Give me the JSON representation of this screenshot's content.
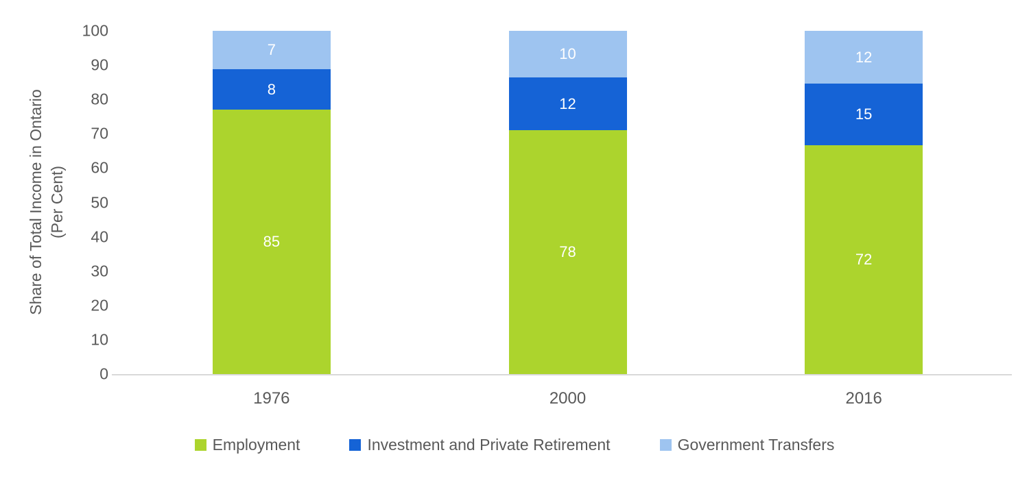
{
  "y_axis": {
    "title_line1": "Share of Total Income in Ontario",
    "title_line2": "(Per Cent)"
  },
  "chart_data": {
    "type": "bar",
    "stacked": true,
    "categories": [
      "1976",
      "2000",
      "2016"
    ],
    "series": [
      {
        "name": "Employment",
        "color": "#acd42d",
        "values": [
          85,
          78,
          72
        ]
      },
      {
        "name": "Investment and Private Retirement",
        "color": "#1563d6",
        "values": [
          8,
          12,
          15
        ]
      },
      {
        "name": "Government Transfers",
        "color": "#9ec4f0",
        "values": [
          7,
          10,
          12
        ]
      }
    ],
    "data_labels_shown": true,
    "ylabel": "Share of Total Income in Ontario (Per Cent)",
    "ylim": [
      0,
      100
    ],
    "yticks": [
      0,
      10,
      20,
      30,
      40,
      50,
      60,
      70,
      80,
      90,
      100
    ],
    "grid": false,
    "legend_position": "bottom",
    "colors": {
      "axis_line": "#d9d9d9",
      "text": "#595959",
      "bar_label_text": "#ffffff"
    }
  }
}
